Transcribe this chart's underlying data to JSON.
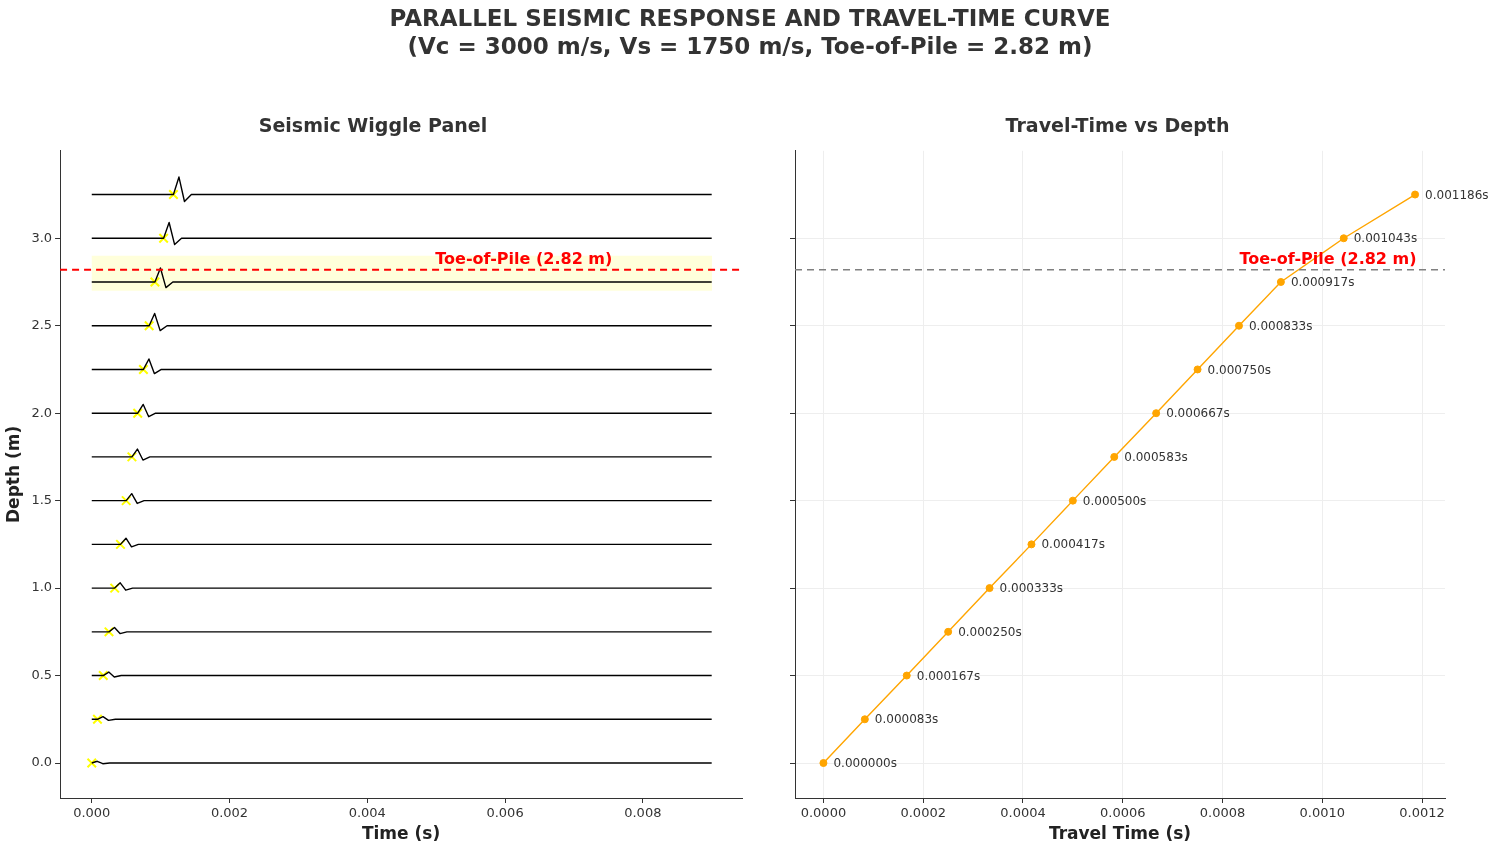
{
  "chart_data": [
    {
      "type": "other",
      "title": "PARALLEL SEISMIC RESPONSE AND TRAVEL-TIME CURVE",
      "subtitle": "(Vc = 3000 m/s, Vs = 1750 m/s, Toe-of-Pile = 2.82 m)"
    },
    {
      "type": "line",
      "title": "Seismic Wiggle Panel",
      "xlabel": "Time (s)",
      "ylabel": "Depth (m)",
      "marker": "none",
      "xlim": [
        -0.00046,
        0.00944
      ],
      "xticks": [
        {
          "value": 0,
          "label": "0.000"
        },
        {
          "value": 0.002,
          "label": "0.002"
        },
        {
          "value": 0.004,
          "label": "0.004"
        },
        {
          "value": 0.006,
          "label": "0.006"
        },
        {
          "value": 0.008,
          "label": "0.008"
        }
      ],
      "ylim": [
        -0.2,
        3.5
      ],
      "yticks": [
        {
          "value": 0,
          "label": "0.0"
        },
        {
          "value": 0.5,
          "label": "0.5"
        },
        {
          "value": 1,
          "label": "1.0"
        },
        {
          "value": 1.5,
          "label": "1.5"
        },
        {
          "value": 2,
          "label": "2.0"
        },
        {
          "value": 2.5,
          "label": "2.5"
        },
        {
          "value": 3,
          "label": "3.0"
        }
      ],
      "bands": [
        {
          "axis": "y",
          "from": 2.7,
          "to": 2.9,
          "color": "#ffffcc"
        }
      ],
      "ref_lines": [
        {
          "axis": "y",
          "value": 2.82,
          "label": "Toe-of-Pile (2.82 m)",
          "color": "#ff0000",
          "line_style": "dashed"
        }
      ],
      "series": [
        {
          "color": "#000000",
          "x": [
            0,
            0,
            8e-05,
            0.00016,
            0.00026,
            0.009
          ],
          "values": [
            0,
            0,
            0.01,
            -0.004,
            0,
            0
          ]
        },
        {
          "color": "#000000",
          "x": [
            0,
            8.3e-05,
            0.000163,
            0.000243,
            0.000343,
            0.009
          ],
          "values": [
            0.25,
            0.25,
            0.265,
            0.244,
            0.25,
            0.25
          ]
        },
        {
          "color": "#000000",
          "x": [
            0,
            0.000167,
            0.000247,
            0.000327,
            0.000427,
            0.009
          ],
          "values": [
            0.5,
            0.5,
            0.52,
            0.492,
            0.5,
            0.5
          ]
        },
        {
          "color": "#000000",
          "x": [
            0,
            0.00025,
            0.00033,
            0.00041,
            0.00051,
            0.009
          ],
          "values": [
            0.75,
            0.75,
            0.775,
            0.74,
            0.75,
            0.75
          ]
        },
        {
          "color": "#000000",
          "x": [
            0,
            0.000333,
            0.000413,
            0.000493,
            0.000593,
            0.009
          ],
          "values": [
            1,
            1,
            1.03,
            0.988,
            1,
            1
          ]
        },
        {
          "color": "#000000",
          "x": [
            0,
            0.000417,
            0.000497,
            0.000577,
            0.000677,
            0.009
          ],
          "values": [
            1.25,
            1.25,
            1.285,
            1.236,
            1.25,
            1.25
          ]
        },
        {
          "color": "#000000",
          "x": [
            0,
            0.0005,
            0.00058,
            0.00066,
            0.00076,
            0.009
          ],
          "values": [
            1.5,
            1.5,
            1.54,
            1.484,
            1.5,
            1.5
          ]
        },
        {
          "color": "#000000",
          "x": [
            0,
            0.000583,
            0.000663,
            0.000743,
            0.000843,
            0.009
          ],
          "values": [
            1.75,
            1.75,
            1.795,
            1.732,
            1.75,
            1.75
          ]
        },
        {
          "color": "#000000",
          "x": [
            0,
            0.000667,
            0.000747,
            0.000827,
            0.000927,
            0.009
          ],
          "values": [
            2,
            2,
            2.05,
            1.98,
            2,
            2
          ]
        },
        {
          "color": "#000000",
          "x": [
            0,
            0.00075,
            0.00083,
            0.00091,
            0.00101,
            0.009
          ],
          "values": [
            2.25,
            2.25,
            2.31,
            2.226,
            2.25,
            2.25
          ]
        },
        {
          "color": "#000000",
          "x": [
            0,
            0.000833,
            0.000913,
            0.000993,
            0.001093,
            0.009
          ],
          "values": [
            2.5,
            2.5,
            2.57,
            2.472,
            2.5,
            2.5
          ]
        },
        {
          "color": "#000000",
          "x": [
            0,
            0.000917,
            0.000997,
            0.001077,
            0.001177,
            0.009
          ],
          "values": [
            2.75,
            2.75,
            2.83,
            2.718,
            2.75,
            2.75
          ]
        },
        {
          "color": "#000000",
          "x": [
            0,
            0.001043,
            0.001123,
            0.001203,
            0.001303,
            0.009
          ],
          "values": [
            3,
            3,
            3.09,
            2.964,
            3,
            3
          ]
        },
        {
          "color": "#000000",
          "x": [
            0,
            0.001186,
            0.001266,
            0.001346,
            0.001446,
            0.009
          ],
          "values": [
            3.25,
            3.25,
            3.35,
            3.21,
            3.25,
            3.25
          ]
        },
        {
          "type": "scatter",
          "marker": "cross",
          "color": "#ffff00",
          "x": [
            0,
            8.3e-05,
            0.000167,
            0.00025,
            0.000333,
            0.000417,
            0.0005,
            0.000583,
            0.000667,
            0.00075,
            0.000833,
            0.000917,
            0.001043,
            0.001186
          ],
          "values": [
            0,
            0.25,
            0.5,
            0.75,
            1,
            1.25,
            1.5,
            1.75,
            2,
            2.25,
            2.5,
            2.75,
            3,
            3.25
          ]
        }
      ]
    },
    {
      "type": "line",
      "title": "Travel-Time vs Depth",
      "xlabel": "Travel Time (s)",
      "marker": "circle",
      "grid": true,
      "tick_labels": "x",
      "xlim": [
        -5.7e-05,
        0.001246
      ],
      "xticks": [
        {
          "value": 0,
          "label": "0.0000"
        },
        {
          "value": 0.0002,
          "label": "0.0002"
        },
        {
          "value": 0.0004,
          "label": "0.0004"
        },
        {
          "value": 0.0006,
          "label": "0.0006"
        },
        {
          "value": 0.0008,
          "label": "0.0008"
        },
        {
          "value": 0.001,
          "label": "0.0010"
        },
        {
          "value": 0.0012,
          "label": "0.0012"
        }
      ],
      "ylim": [
        -0.2,
        3.5
      ],
      "yticks": [
        0,
        0.5,
        1,
        1.5,
        2,
        2.5,
        3
      ],
      "ref_lines": [
        {
          "axis": "y",
          "value": 2.82,
          "label": "Toe-of-Pile (2.82 m)",
          "color": "#808080",
          "line_style": "dashed"
        }
      ],
      "annotations": [
        {
          "text": "0.000000s",
          "x": 0,
          "y": 0
        },
        {
          "text": "0.000083s",
          "x": 8.3e-05,
          "y": 0.25
        },
        {
          "text": "0.000167s",
          "x": 0.000167,
          "y": 0.5
        },
        {
          "text": "0.000250s",
          "x": 0.00025,
          "y": 0.75
        },
        {
          "text": "0.000333s",
          "x": 0.000333,
          "y": 1
        },
        {
          "text": "0.000417s",
          "x": 0.000417,
          "y": 1.25
        },
        {
          "text": "0.000500s",
          "x": 0.0005,
          "y": 1.5
        },
        {
          "text": "0.000583s",
          "x": 0.000583,
          "y": 1.75
        },
        {
          "text": "0.000667s",
          "x": 0.000667,
          "y": 2
        },
        {
          "text": "0.000750s",
          "x": 0.00075,
          "y": 2.25
        },
        {
          "text": "0.000833s",
          "x": 0.000833,
          "y": 2.5
        },
        {
          "text": "0.000917s",
          "x": 0.000917,
          "y": 2.75
        },
        {
          "text": "0.001043s",
          "x": 0.001043,
          "y": 3
        },
        {
          "text": "0.001186s",
          "x": 0.001186,
          "y": 3.25
        }
      ],
      "series": [
        {
          "color": "#ffa500",
          "x": [
            0,
            8.3e-05,
            0.000167,
            0.00025,
            0.000333,
            0.000417,
            0.0005,
            0.000583,
            0.000667,
            0.00075,
            0.000833,
            0.000917,
            0.001043,
            0.001186
          ],
          "values": [
            0,
            0.25,
            0.5,
            0.75,
            1,
            1.25,
            1.5,
            1.75,
            2,
            2.25,
            2.5,
            2.75,
            3,
            3.25
          ]
        }
      ]
    }
  ]
}
